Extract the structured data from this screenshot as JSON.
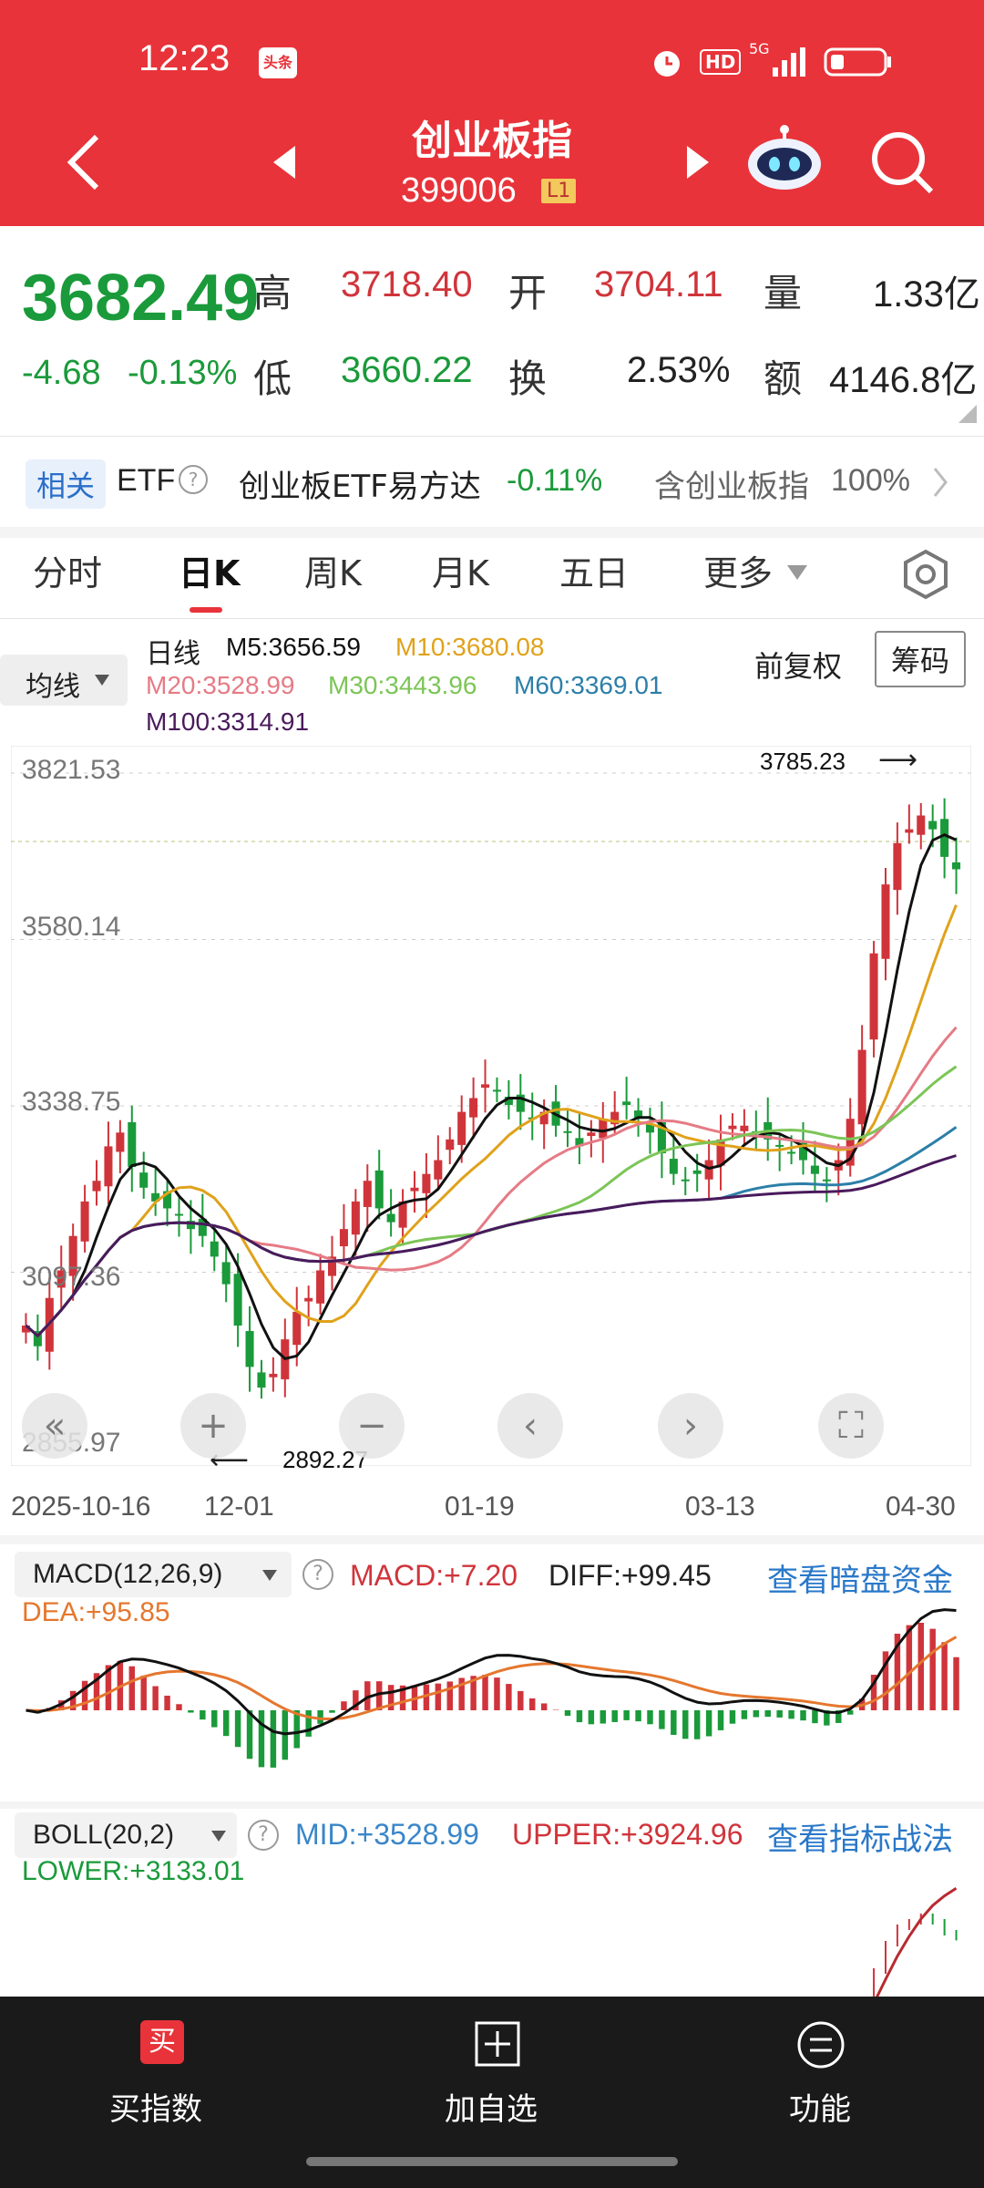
{
  "status_bar": {
    "time": "12:23",
    "toutiao_badge": "头条",
    "hd": "HD",
    "signal": "5G"
  },
  "header": {
    "title": "创业板指",
    "code": "399006",
    "level_badge": "L1"
  },
  "quote": {
    "price": "3682.49",
    "change": "-4.68",
    "change_pct": "-0.13%",
    "high_label": "高",
    "high": "3718.40",
    "open_label": "开",
    "open": "3704.11",
    "vol_label": "量",
    "volume": "1.33亿",
    "low_label": "低",
    "low": "3660.22",
    "turnover_label": "换",
    "turnover": "2.53%",
    "amount_label": "额",
    "amount": "4146.8亿"
  },
  "etf": {
    "tag": "相关",
    "etf_label": "ETF",
    "name": "创业板ETF易方达",
    "change": "-0.11%",
    "contains": "含创业板指",
    "weight": "100%"
  },
  "tabs": [
    "分时",
    "日K",
    "周K",
    "月K",
    "五日",
    "更多"
  ],
  "active_tab": "日K",
  "ma_bar": {
    "selector": "均线",
    "line_type": "日线",
    "ma5": "M5:3656.59",
    "ma10": "M10:3680.08",
    "ma20": "M20:3528.99",
    "ma30": "M30:3443.96",
    "ma60": "M60:3369.01",
    "ma100": "M100:3314.91",
    "adjust": "前复权",
    "chips": "筹码"
  },
  "chart_data": {
    "type": "candlestick",
    "y_ticks": [
      "3821.53",
      "3580.14",
      "3338.75",
      "3097.36",
      "2855.97"
    ],
    "x_ticks": [
      "2025-10-16",
      "12-01",
      "01-19",
      "03-13",
      "04-30"
    ],
    "max_label": "3785.23",
    "min_label": "2892.27",
    "close": [
      3020,
      2990,
      3060,
      3100,
      3150,
      3200,
      3230,
      3280,
      3300,
      3250,
      3220,
      3200,
      3190,
      3180,
      3160,
      3150,
      3120,
      3080,
      3020,
      2960,
      2930,
      2950,
      3000,
      3040,
      3060,
      3100,
      3120,
      3160,
      3200,
      3230,
      3190,
      3170,
      3200,
      3220,
      3240,
      3260,
      3290,
      3330,
      3350,
      3370,
      3360,
      3340,
      3330,
      3320,
      3330,
      3310,
      3300,
      3280,
      3300,
      3320,
      3330,
      3340,
      3320,
      3300,
      3270,
      3240,
      3230,
      3240,
      3260,
      3290,
      3310,
      3310,
      3300,
      3290,
      3280,
      3270,
      3260,
      3240,
      3230,
      3260,
      3320,
      3420,
      3560,
      3660,
      3720,
      3740,
      3760,
      3740,
      3700,
      3682
    ],
    "ma_colors": {
      "ma5": "#111111",
      "ma10": "#e0a21b",
      "ma20": "#e57b85",
      "ma30": "#7cc557",
      "ma60": "#2c7fa8",
      "ma100": "#4a1a5c"
    }
  },
  "macd": {
    "selector": "MACD(12,26,9)",
    "macd": "MACD:+7.20",
    "diff": "DIFF:+99.45",
    "dea": "DEA:+95.85",
    "link": "查看暗盘资金"
  },
  "boll": {
    "selector": "BOLL(20,2)",
    "mid": "MID:+3528.99",
    "upper": "UPPER:+3924.96",
    "lower": "LOWER:+3133.01",
    "link": "查看指标战法"
  },
  "bottom": {
    "buy": "买指数",
    "buy_icon": "买",
    "add": "加自选",
    "func": "功能"
  }
}
